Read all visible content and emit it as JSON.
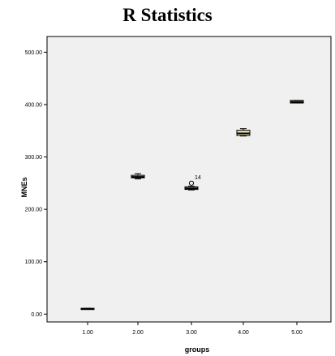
{
  "page": {
    "title": "R Statistics"
  },
  "chart_data": {
    "type": "boxplot",
    "xlabel": "groups",
    "ylabel": "MNEs",
    "categories": [
      "1.00",
      "2.00",
      "3.00",
      "4.00",
      "5.00"
    ],
    "yticks": [
      "0.00",
      "100.00",
      "200.00",
      "300.00",
      "400.00",
      "500.00"
    ],
    "ylim": [
      -15,
      530
    ],
    "boxes": [
      {
        "category": "1.00",
        "min": 9,
        "q1": 9,
        "median": 10,
        "q3": 11,
        "max": 11
      },
      {
        "category": "2.00",
        "min": 258,
        "q1": 260,
        "median": 262,
        "q3": 265,
        "max": 268
      },
      {
        "category": "3.00",
        "min": 237,
        "q1": 238,
        "median": 240,
        "q3": 243,
        "max": 244
      },
      {
        "category": "4.00",
        "min": 340,
        "q1": 341,
        "median": 345,
        "q3": 351,
        "max": 354
      },
      {
        "category": "5.00",
        "min": 403,
        "q1": 403,
        "median": 405,
        "q3": 408,
        "max": 408
      }
    ],
    "outliers": [
      {
        "category": "3.00",
        "value": 250,
        "label": "14"
      }
    ],
    "colors": {
      "plot_bg": "#f0f0f0",
      "box_fill": "#e8e3b4",
      "line": "#000000"
    },
    "grid": false,
    "legend": "none"
  }
}
